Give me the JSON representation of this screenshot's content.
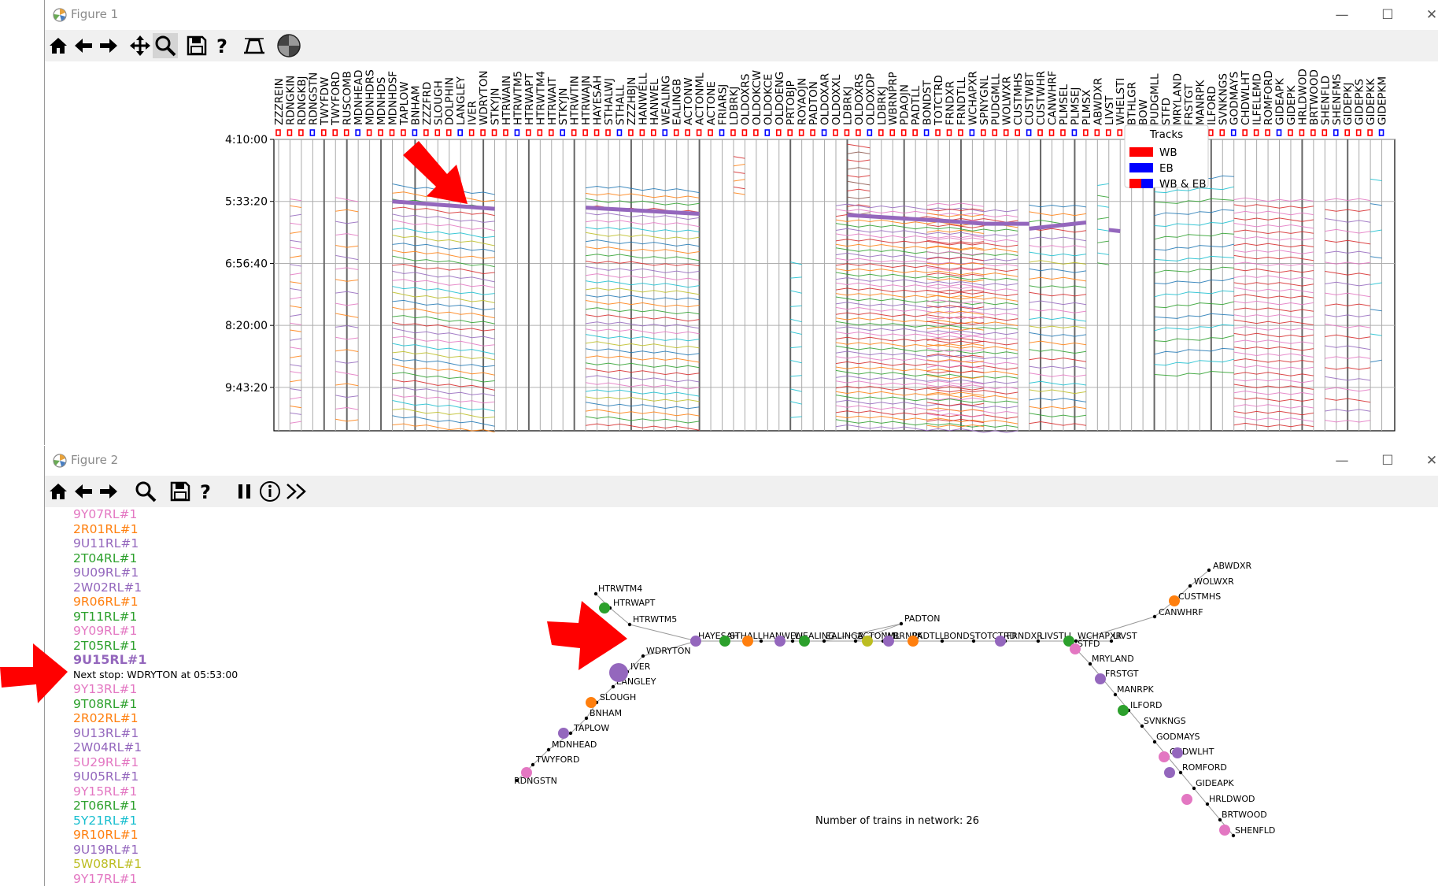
{
  "figure1": {
    "title": "Figure 1",
    "controls": {
      "minimize": "—",
      "maximize": "☐",
      "close": "✕"
    },
    "toolbar": [
      "home-icon",
      "back-arrow-icon",
      "forward-arrow-icon",
      "pan-icon",
      "zoom-icon",
      "save-icon",
      "help-icon",
      "subplots-icon",
      "colormap-icon"
    ]
  },
  "figure2": {
    "title": "Figure 2",
    "controls": {
      "minimize": "—",
      "maximize": "☐",
      "close": "✕"
    },
    "toolbar": [
      "home-icon",
      "back-arrow-icon",
      "forward-arrow-icon",
      "zoom-icon",
      "save-icon",
      "help-icon",
      "pause-icon",
      "info-icon",
      "fast-forward-icon"
    ]
  },
  "chart_data": {
    "type": "line",
    "yticks": [
      "4:10:00",
      "5:33:20",
      "6:56:40",
      "8:20:00",
      "9:43:20"
    ],
    "yticks_seconds": [
      15000,
      20000,
      25000,
      30000,
      35000
    ],
    "ylim_seconds": [
      15000,
      38500
    ],
    "stations": [
      "ZZZREIN",
      "RDNGKIN",
      "RDNGKBJ",
      "RDNGSTN",
      "TWYFDW",
      "TWYFORD",
      "RUSCOMB",
      "MDNHEAD",
      "MDNHDRS",
      "MDNHDS",
      "MDNHDSF",
      "TAPLOW",
      "BNHAM",
      "ZZZFRD",
      "SLOUGH",
      "DOLPHIN",
      "LANGLEY",
      "IVER",
      "WDRYTON",
      "STKYJN",
      "HTRWAIN",
      "HTRWTM5",
      "HTRWAPT",
      "HTRWTM4",
      "HTRWAIT",
      "STKYJN",
      "HTRWTIN",
      "HTRWAJN",
      "HAYESAH",
      "STHALWJ",
      "STHALL",
      "ZZZHBJN",
      "HANWELL",
      "HANWEL",
      "WEALING",
      "EALINGB",
      "ACTONW",
      "ACTONML",
      "ACTONE",
      "FRIARSJ",
      "LDBRKJ",
      "OLDOXRS",
      "OLDOKCW",
      "OLDOKCE",
      "OLDOENG",
      "PRTOBJP",
      "ROYAOJN",
      "PADTON",
      "OLDOXAR",
      "OLDOXXL",
      "LDBRKJ",
      "OLDOXRS",
      "OLDOXDP",
      "LDBRKJ",
      "WBRNPRP",
      "PDAOJN",
      "PADTLL",
      "BONDST",
      "TOTCTRD",
      "FRNDXR",
      "FRNDTLL",
      "WCHAPXR",
      "SPNYGNL",
      "PUDGMLL",
      "WOLWXR",
      "CUSTMHS",
      "CUSTWBT",
      "CUSTWHR",
      "CANWHRF",
      "PLMSEL",
      "PLMSEJ",
      "PLMSX",
      "ABWDXR",
      "LIVST",
      "WHELSTI",
      "BTHLGR",
      "BOW",
      "PUDGMLL",
      "STFD",
      "MRYLAND",
      "FRSTGT",
      "MANRPK",
      "ILFORD",
      "SVNKNGS",
      "GODMAYS",
      "CHDWLHT",
      "ILFELEMD",
      "ROMFORD",
      "GIDEAPK",
      "GIDEPK",
      "HRLDWOD",
      "BRTWOOD",
      "SHENFLD",
      "SHENFMS",
      "GIDEPKJ",
      "GIDEPKS",
      "GIDEPKK",
      "GIDEPKM"
    ],
    "legend": {
      "title": "Tracks",
      "entries": [
        "WB",
        "EB",
        "WB & EB"
      ],
      "colors": [
        "#ff0000",
        "#0000ff",
        "#ff0000/#0000ff"
      ],
      "placement": "top-right"
    },
    "highlight_color": "#9467bd",
    "grid": true
  },
  "trains": [
    {
      "id": "9Y07RL#1",
      "color": "#e377c2"
    },
    {
      "id": "2R01RL#1",
      "color": "#ff7f0e"
    },
    {
      "id": "9U11RL#1",
      "color": "#9467bd"
    },
    {
      "id": "2T04RL#1",
      "color": "#2ca02c"
    },
    {
      "id": "9U09RL#1",
      "color": "#9467bd"
    },
    {
      "id": "2W02RL#1",
      "color": "#9467bd"
    },
    {
      "id": "9R06RL#1",
      "color": "#ff7f0e"
    },
    {
      "id": "9T11RL#1",
      "color": "#2ca02c"
    },
    {
      "id": "9Y09RL#1",
      "color": "#e377c2"
    },
    {
      "id": "2T05RL#1",
      "color": "#2ca02c"
    },
    {
      "id": "9U15RL#1",
      "color": "#9467bd",
      "selected": true,
      "next_stop": "Next stop: WDRYTON at 05:53:00"
    },
    {
      "id": "9Y13RL#1",
      "color": "#e377c2"
    },
    {
      "id": "9T08RL#1",
      "color": "#2ca02c"
    },
    {
      "id": "2R02RL#1",
      "color": "#ff7f0e"
    },
    {
      "id": "9U13RL#1",
      "color": "#9467bd"
    },
    {
      "id": "2W04RL#1",
      "color": "#9467bd"
    },
    {
      "id": "5U29RL#1",
      "color": "#e377c2"
    },
    {
      "id": "9U05RL#1",
      "color": "#9467bd"
    },
    {
      "id": "9Y15RL#1",
      "color": "#e377c2"
    },
    {
      "id": "2T06RL#1",
      "color": "#2ca02c"
    },
    {
      "id": "5Y21RL#1",
      "color": "#17becf"
    },
    {
      "id": "9R10RL#1",
      "color": "#ff7f0e"
    },
    {
      "id": "9U19RL#1",
      "color": "#9467bd"
    },
    {
      "id": "5W08RL#1",
      "color": "#bcbd22"
    },
    {
      "id": "9Y17RL#1",
      "color": "#e377c2"
    }
  ],
  "network": {
    "count_text": "Number of trains in network: 26",
    "labels": [
      "ABWDXR",
      "WOLWXR",
      "CUSTMHS",
      "CANWHRF",
      "HTRWTM4",
      "HTRWAPT",
      "HTRWTM5",
      "PADTON",
      "WDRYTON",
      "IVER",
      "LANGLEY",
      "SLOUGH",
      "BNHAM",
      "TAPLOW",
      "MDNHEAD",
      "TWYFORD",
      "RDNGSTN",
      "HAYESAH",
      "STHALL",
      "HANWELL",
      "WEALING",
      "EALINGB",
      "ACTONML",
      "WBRNPK",
      "PADTLL",
      "BONDST",
      "TOTCTRD",
      "FRNDXR",
      "LIVSTLL",
      "WCHAPXR",
      "LIVST",
      "STFD",
      "MRYLAND",
      "FRSTGT",
      "MANRPK",
      "ILFORD",
      "SVNKNGS",
      "GODMAYS",
      "CHDWLHT",
      "ROMFORD",
      "GIDEAPK",
      "HRLDWOD",
      "BRTWOOD",
      "SHENFLD"
    ]
  }
}
